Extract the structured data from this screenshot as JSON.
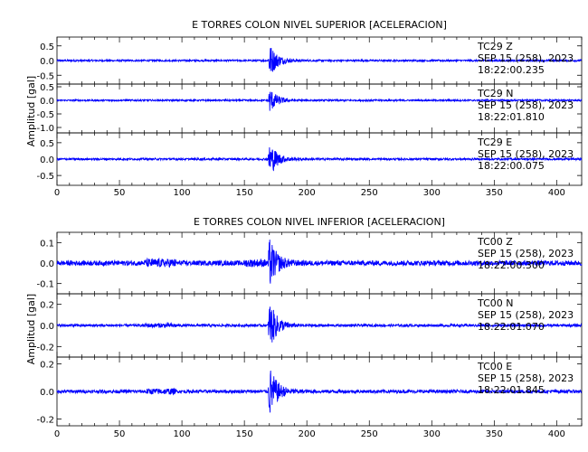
{
  "chart_data": [
    {
      "type": "line",
      "title": "E TORRES COLON NIVEL SUPERIOR [ACELERACION]",
      "ylabel": "Amplitud [gal]",
      "xlabel": "",
      "xlim": [
        0,
        420
      ],
      "xticks": [
        0,
        50,
        100,
        150,
        200,
        250,
        300,
        350,
        400
      ],
      "xtick_labels": [
        "0",
        "50",
        "100",
        "150",
        "200",
        "250",
        "300",
        "350",
        "400"
      ],
      "series_color": "#0000ff",
      "grid": false,
      "event_time": 171,
      "series": [
        {
          "name": "TC29 Z",
          "ylim": [
            -0.8,
            0.8
          ],
          "yticks": [
            0.5,
            0.0,
            -0.5
          ],
          "ytick_labels": [
            "0.5",
            "0.0",
            "-0.5"
          ],
          "noise_amp": 0.03,
          "peak_amp": 0.7,
          "date": "SEP 15 (258), 2023",
          "time": "18:22:00.235"
        },
        {
          "name": "TC29 N",
          "ylim": [
            -1.2,
            0.6
          ],
          "yticks": [
            0.5,
            0.0,
            -0.5,
            -1.0
          ],
          "ytick_labels": [
            "0.5",
            "0.0",
            "-0.5",
            "-1.0"
          ],
          "noise_amp": 0.03,
          "peak_amp": 0.55,
          "date": "SEP 15 (258), 2023",
          "time": "18:22:01.810"
        },
        {
          "name": "TC29 E",
          "ylim": [
            -0.8,
            0.8
          ],
          "yticks": [
            0.5,
            0.0,
            -0.5
          ],
          "ytick_labels": [
            "0.5",
            "0.0",
            "-0.5"
          ],
          "noise_amp": 0.03,
          "peak_amp": 0.65,
          "date": "SEP 15 (258), 2023",
          "time": "18:22:00.075"
        }
      ]
    },
    {
      "type": "line",
      "title": "E TORRES COLON NIVEL INFERIOR [ACELERACION]",
      "ylabel": "Amplitud [gal]",
      "xlabel": "",
      "xlim": [
        0,
        420
      ],
      "xticks": [
        0,
        50,
        100,
        150,
        200,
        250,
        300,
        350,
        400
      ],
      "xtick_labels": [
        "0",
        "50",
        "100",
        "150",
        "200",
        "250",
        "300",
        "350",
        "400"
      ],
      "series_color": "#0000ff",
      "grid": false,
      "event_time": 171,
      "series": [
        {
          "name": "TC00 Z",
          "ylim": [
            -0.15,
            0.15
          ],
          "yticks": [
            0.1,
            0.0,
            -0.1
          ],
          "ytick_labels": [
            "0.1",
            "0.0",
            "-0.1"
          ],
          "noise_amp": 0.012,
          "peak_amp": 0.14,
          "date": "SEP 15 (258), 2023",
          "time": "18:22:00.300"
        },
        {
          "name": "TC00 N",
          "ylim": [
            -0.3,
            0.3
          ],
          "yticks": [
            0.2,
            0.0,
            -0.2
          ],
          "ytick_labels": [
            "0.2",
            "0.0",
            "-0.2"
          ],
          "noise_amp": 0.012,
          "peak_amp": 0.28,
          "date": "SEP 15 (258), 2023",
          "time": "18:22:01.070"
        },
        {
          "name": "TC00 E",
          "ylim": [
            -0.25,
            0.25
          ],
          "yticks": [
            0.2,
            0.0,
            -0.2
          ],
          "ytick_labels": [
            "0.2",
            "0.0",
            "-0.2"
          ],
          "noise_amp": 0.012,
          "peak_amp": 0.22,
          "date": "SEP 15 (258), 2023",
          "time": "18:22:01.845"
        }
      ]
    }
  ]
}
